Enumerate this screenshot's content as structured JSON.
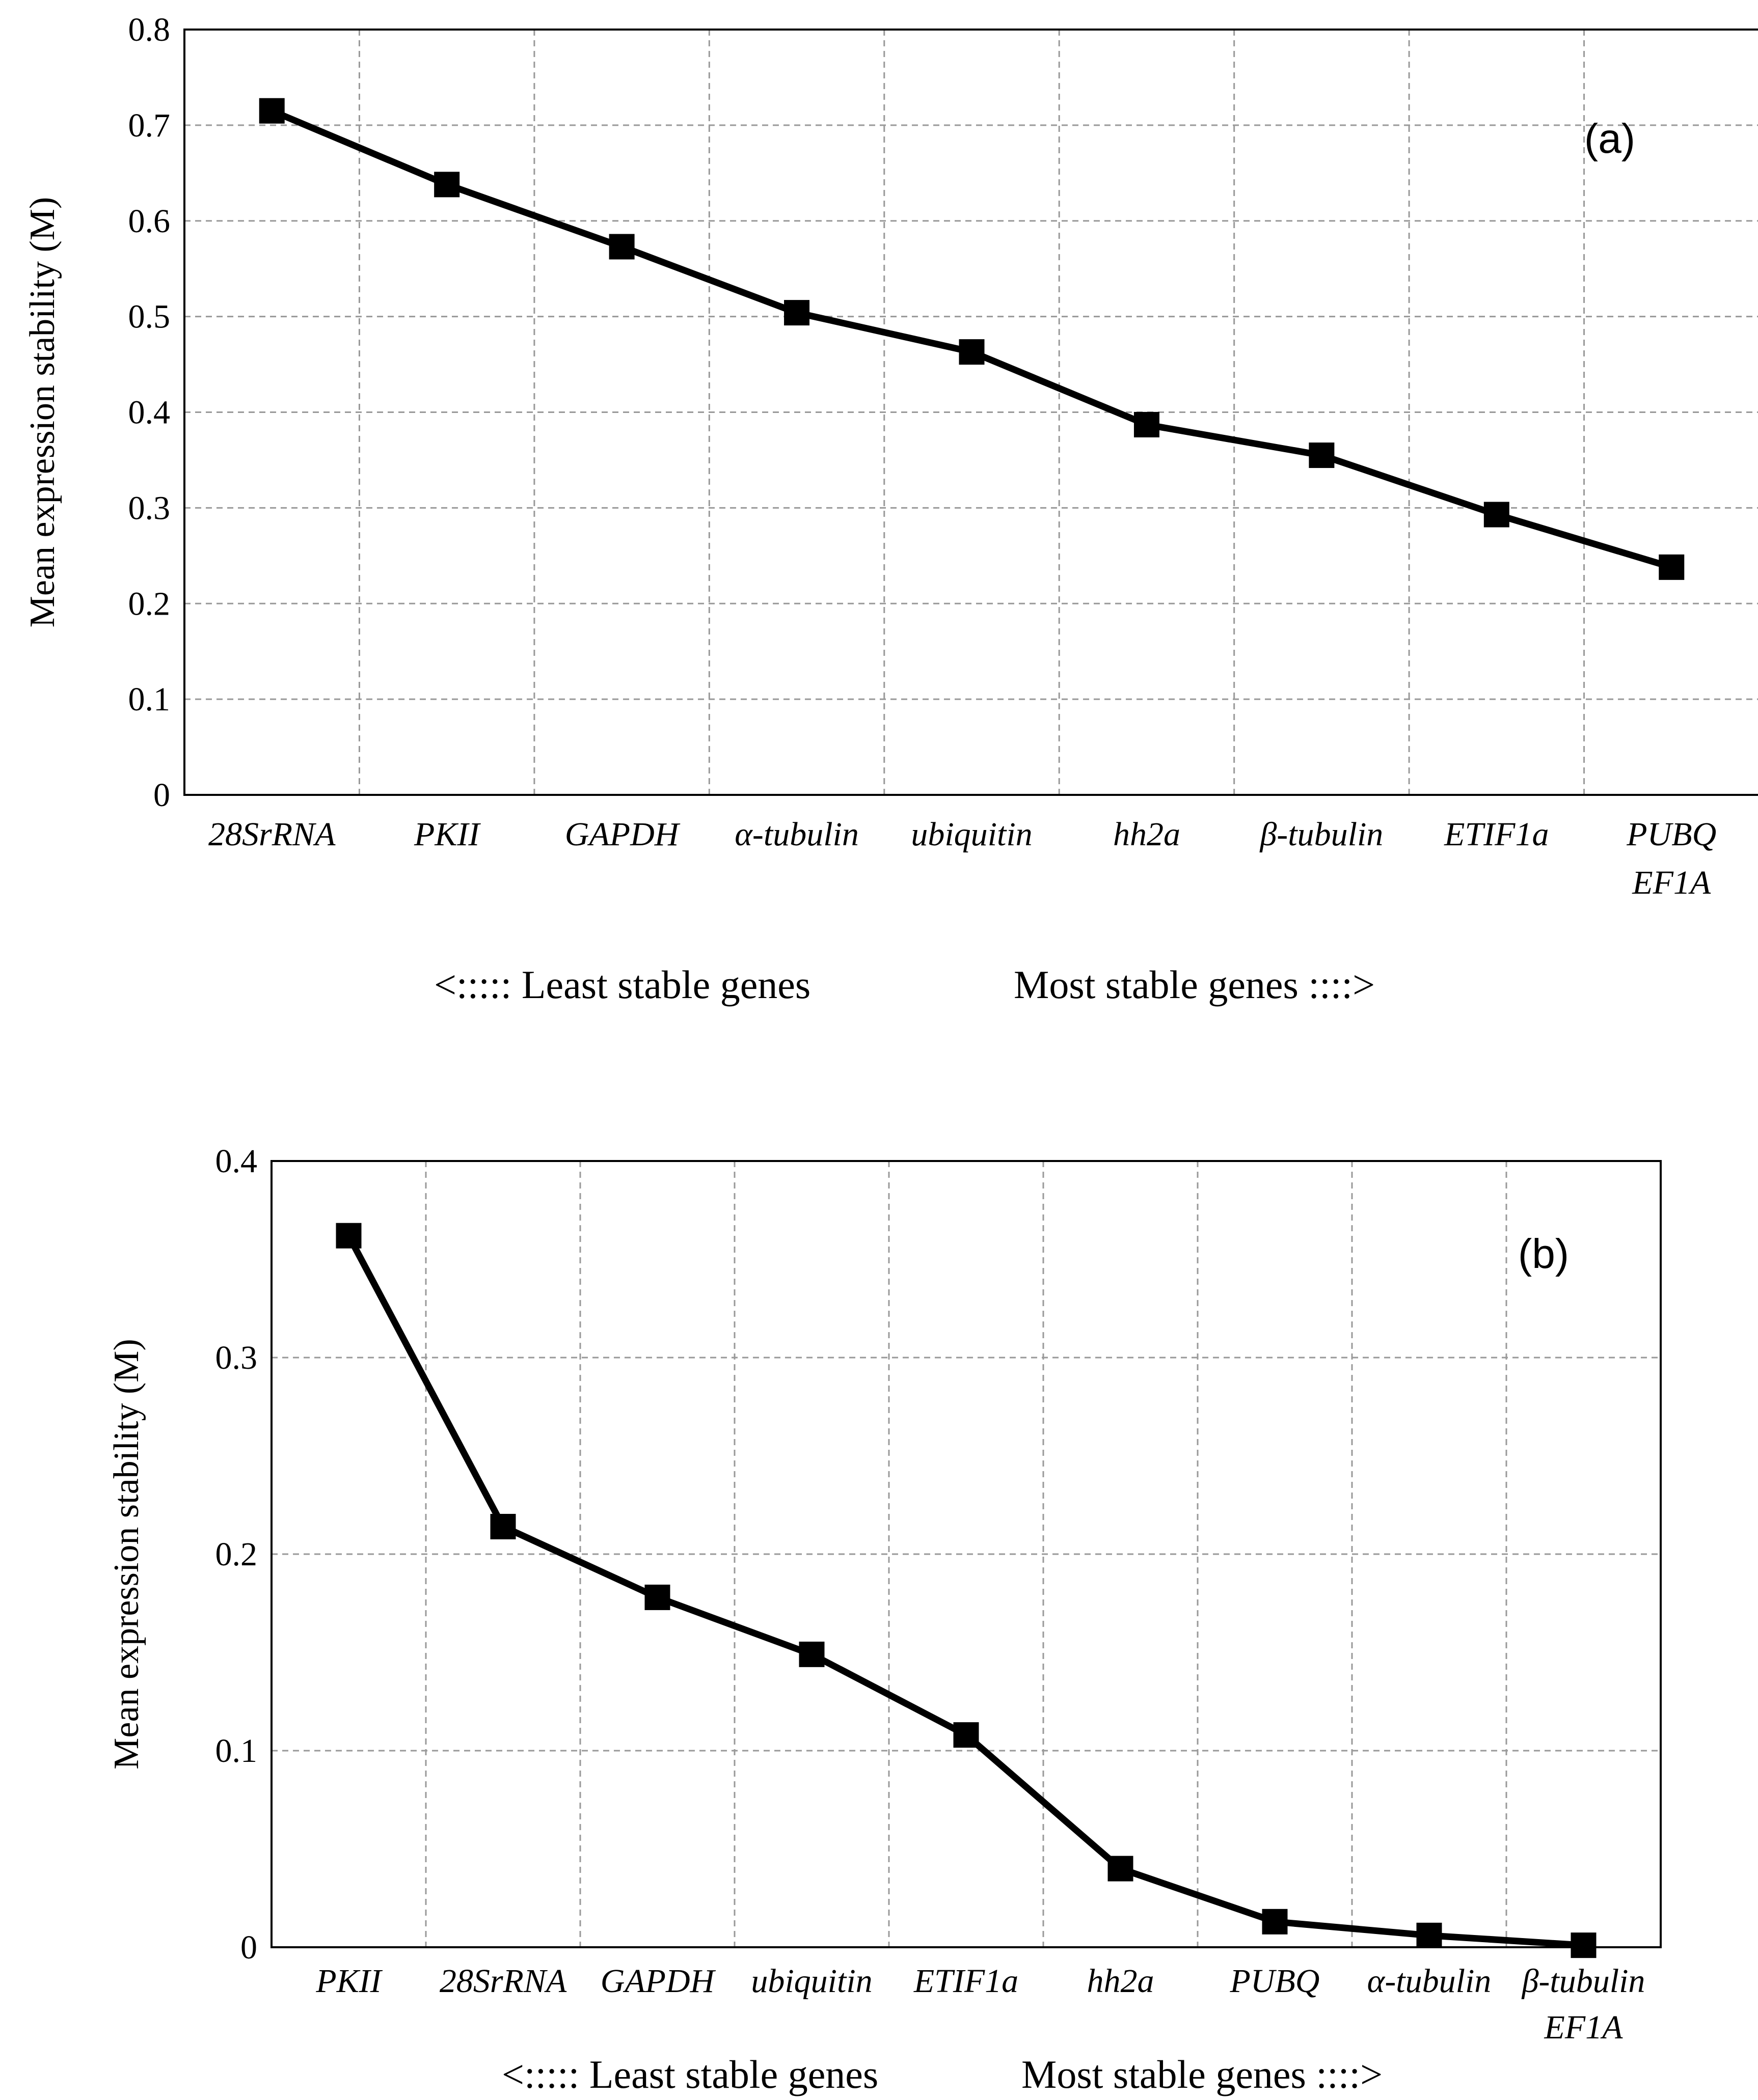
{
  "chart_data": [
    {
      "type": "line",
      "panel_label": "(a)",
      "ylabel": "Mean expression stability (M)",
      "xlabel": "",
      "ylim": [
        0,
        0.8
      ],
      "yticks": [
        "0",
        "0.1",
        "0.2",
        "0.3",
        "0.4",
        "0.5",
        "0.6",
        "0.7",
        "0.8"
      ],
      "yticks_values": [
        0,
        0.1,
        0.2,
        0.3,
        0.4,
        0.5,
        0.6,
        0.7,
        0.8
      ],
      "grid": true,
      "categories": [
        "28SrRNA",
        "PKII",
        "GAPDH",
        "α-tubulin",
        "ubiquitin",
        "hh2a",
        "β-tubulin",
        "ETIF1a",
        "PUBQ"
      ],
      "last_category_line2": "EF1A",
      "values": [
        0.715,
        0.638,
        0.573,
        0.504,
        0.463,
        0.387,
        0.355,
        0.293,
        0.238
      ],
      "least_label": "<::::: Least stable genes",
      "most_label": "Most stable genes ::::>"
    },
    {
      "type": "line",
      "panel_label": "(b)",
      "ylabel": "Mean expression stability (M)",
      "xlabel": "",
      "ylim": [
        0,
        0.4
      ],
      "yticks": [
        "0",
        "0.1",
        "0.2",
        "0.3",
        "0.4"
      ],
      "yticks_values": [
        0,
        0.1,
        0.2,
        0.3,
        0.4
      ],
      "grid": true,
      "categories": [
        "PKII",
        "28SrRNA",
        "GAPDH",
        "ubiquitin",
        "ETIF1a",
        "hh2a",
        "PUBQ",
        "α-tubulin",
        "β-tubulin"
      ],
      "last_category_line2": "EF1A",
      "values": [
        0.362,
        0.214,
        0.178,
        0.149,
        0.108,
        0.04,
        0.013,
        0.006,
        0.001
      ],
      "least_label": "<::::: Least stable genes",
      "most_label": "Most stable genes ::::>"
    }
  ]
}
